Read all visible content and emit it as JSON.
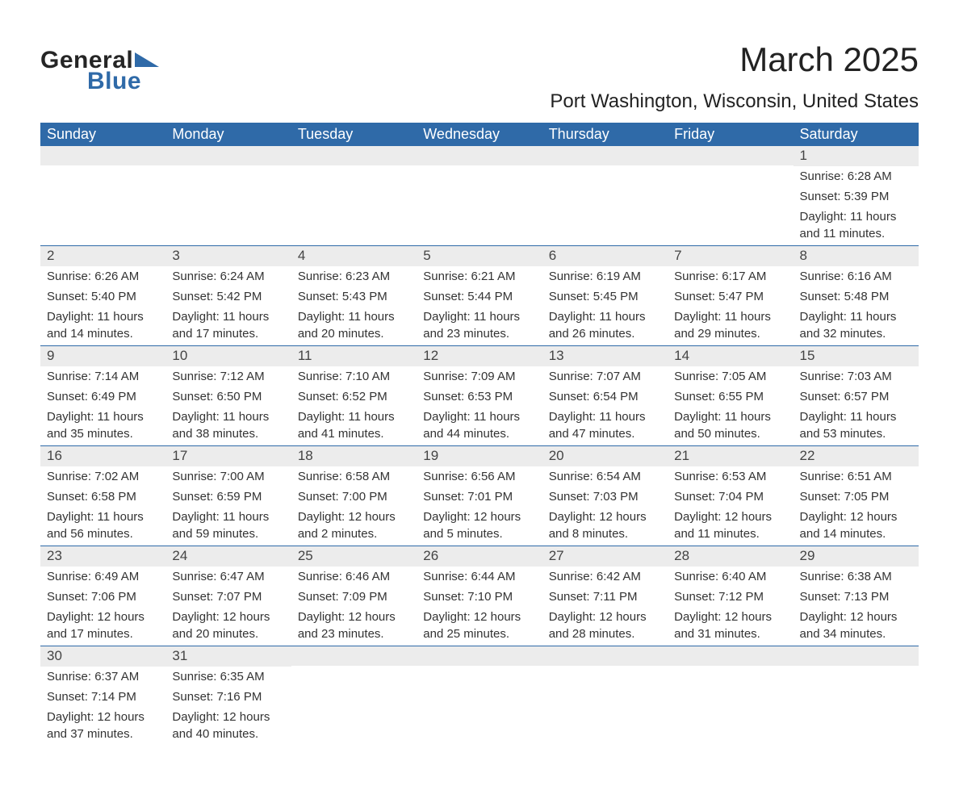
{
  "logo": {
    "word1": "General",
    "word2": "Blue"
  },
  "title": "March 2025",
  "location": "Port Washington, Wisconsin, United States",
  "colors": {
    "header_bg": "#2f6aa8",
    "header_fg": "#ffffff",
    "daynum_bg": "#ececec",
    "text": "#333333",
    "page_bg": "#ffffff"
  },
  "typography": {
    "title_fontsize": 42,
    "location_fontsize": 24,
    "dayhead_fontsize": 18,
    "daynum_fontsize": 17,
    "body_fontsize": 15
  },
  "day_headers": [
    "Sunday",
    "Monday",
    "Tuesday",
    "Wednesday",
    "Thursday",
    "Friday",
    "Saturday"
  ],
  "weeks": [
    [
      {
        "n": "",
        "sr": "",
        "ss": "",
        "dl": ""
      },
      {
        "n": "",
        "sr": "",
        "ss": "",
        "dl": ""
      },
      {
        "n": "",
        "sr": "",
        "ss": "",
        "dl": ""
      },
      {
        "n": "",
        "sr": "",
        "ss": "",
        "dl": ""
      },
      {
        "n": "",
        "sr": "",
        "ss": "",
        "dl": ""
      },
      {
        "n": "",
        "sr": "",
        "ss": "",
        "dl": ""
      },
      {
        "n": "1",
        "sr": "Sunrise: 6:28 AM",
        "ss": "Sunset: 5:39 PM",
        "dl": "Daylight: 11 hours and 11 minutes."
      }
    ],
    [
      {
        "n": "2",
        "sr": "Sunrise: 6:26 AM",
        "ss": "Sunset: 5:40 PM",
        "dl": "Daylight: 11 hours and 14 minutes."
      },
      {
        "n": "3",
        "sr": "Sunrise: 6:24 AM",
        "ss": "Sunset: 5:42 PM",
        "dl": "Daylight: 11 hours and 17 minutes."
      },
      {
        "n": "4",
        "sr": "Sunrise: 6:23 AM",
        "ss": "Sunset: 5:43 PM",
        "dl": "Daylight: 11 hours and 20 minutes."
      },
      {
        "n": "5",
        "sr": "Sunrise: 6:21 AM",
        "ss": "Sunset: 5:44 PM",
        "dl": "Daylight: 11 hours and 23 minutes."
      },
      {
        "n": "6",
        "sr": "Sunrise: 6:19 AM",
        "ss": "Sunset: 5:45 PM",
        "dl": "Daylight: 11 hours and 26 minutes."
      },
      {
        "n": "7",
        "sr": "Sunrise: 6:17 AM",
        "ss": "Sunset: 5:47 PM",
        "dl": "Daylight: 11 hours and 29 minutes."
      },
      {
        "n": "8",
        "sr": "Sunrise: 6:16 AM",
        "ss": "Sunset: 5:48 PM",
        "dl": "Daylight: 11 hours and 32 minutes."
      }
    ],
    [
      {
        "n": "9",
        "sr": "Sunrise: 7:14 AM",
        "ss": "Sunset: 6:49 PM",
        "dl": "Daylight: 11 hours and 35 minutes."
      },
      {
        "n": "10",
        "sr": "Sunrise: 7:12 AM",
        "ss": "Sunset: 6:50 PM",
        "dl": "Daylight: 11 hours and 38 minutes."
      },
      {
        "n": "11",
        "sr": "Sunrise: 7:10 AM",
        "ss": "Sunset: 6:52 PM",
        "dl": "Daylight: 11 hours and 41 minutes."
      },
      {
        "n": "12",
        "sr": "Sunrise: 7:09 AM",
        "ss": "Sunset: 6:53 PM",
        "dl": "Daylight: 11 hours and 44 minutes."
      },
      {
        "n": "13",
        "sr": "Sunrise: 7:07 AM",
        "ss": "Sunset: 6:54 PM",
        "dl": "Daylight: 11 hours and 47 minutes."
      },
      {
        "n": "14",
        "sr": "Sunrise: 7:05 AM",
        "ss": "Sunset: 6:55 PM",
        "dl": "Daylight: 11 hours and 50 minutes."
      },
      {
        "n": "15",
        "sr": "Sunrise: 7:03 AM",
        "ss": "Sunset: 6:57 PM",
        "dl": "Daylight: 11 hours and 53 minutes."
      }
    ],
    [
      {
        "n": "16",
        "sr": "Sunrise: 7:02 AM",
        "ss": "Sunset: 6:58 PM",
        "dl": "Daylight: 11 hours and 56 minutes."
      },
      {
        "n": "17",
        "sr": "Sunrise: 7:00 AM",
        "ss": "Sunset: 6:59 PM",
        "dl": "Daylight: 11 hours and 59 minutes."
      },
      {
        "n": "18",
        "sr": "Sunrise: 6:58 AM",
        "ss": "Sunset: 7:00 PM",
        "dl": "Daylight: 12 hours and 2 minutes."
      },
      {
        "n": "19",
        "sr": "Sunrise: 6:56 AM",
        "ss": "Sunset: 7:01 PM",
        "dl": "Daylight: 12 hours and 5 minutes."
      },
      {
        "n": "20",
        "sr": "Sunrise: 6:54 AM",
        "ss": "Sunset: 7:03 PM",
        "dl": "Daylight: 12 hours and 8 minutes."
      },
      {
        "n": "21",
        "sr": "Sunrise: 6:53 AM",
        "ss": "Sunset: 7:04 PM",
        "dl": "Daylight: 12 hours and 11 minutes."
      },
      {
        "n": "22",
        "sr": "Sunrise: 6:51 AM",
        "ss": "Sunset: 7:05 PM",
        "dl": "Daylight: 12 hours and 14 minutes."
      }
    ],
    [
      {
        "n": "23",
        "sr": "Sunrise: 6:49 AM",
        "ss": "Sunset: 7:06 PM",
        "dl": "Daylight: 12 hours and 17 minutes."
      },
      {
        "n": "24",
        "sr": "Sunrise: 6:47 AM",
        "ss": "Sunset: 7:07 PM",
        "dl": "Daylight: 12 hours and 20 minutes."
      },
      {
        "n": "25",
        "sr": "Sunrise: 6:46 AM",
        "ss": "Sunset: 7:09 PM",
        "dl": "Daylight: 12 hours and 23 minutes."
      },
      {
        "n": "26",
        "sr": "Sunrise: 6:44 AM",
        "ss": "Sunset: 7:10 PM",
        "dl": "Daylight: 12 hours and 25 minutes."
      },
      {
        "n": "27",
        "sr": "Sunrise: 6:42 AM",
        "ss": "Sunset: 7:11 PM",
        "dl": "Daylight: 12 hours and 28 minutes."
      },
      {
        "n": "28",
        "sr": "Sunrise: 6:40 AM",
        "ss": "Sunset: 7:12 PM",
        "dl": "Daylight: 12 hours and 31 minutes."
      },
      {
        "n": "29",
        "sr": "Sunrise: 6:38 AM",
        "ss": "Sunset: 7:13 PM",
        "dl": "Daylight: 12 hours and 34 minutes."
      }
    ],
    [
      {
        "n": "30",
        "sr": "Sunrise: 6:37 AM",
        "ss": "Sunset: 7:14 PM",
        "dl": "Daylight: 12 hours and 37 minutes."
      },
      {
        "n": "31",
        "sr": "Sunrise: 6:35 AM",
        "ss": "Sunset: 7:16 PM",
        "dl": "Daylight: 12 hours and 40 minutes."
      },
      {
        "n": "",
        "sr": "",
        "ss": "",
        "dl": ""
      },
      {
        "n": "",
        "sr": "",
        "ss": "",
        "dl": ""
      },
      {
        "n": "",
        "sr": "",
        "ss": "",
        "dl": ""
      },
      {
        "n": "",
        "sr": "",
        "ss": "",
        "dl": ""
      },
      {
        "n": "",
        "sr": "",
        "ss": "",
        "dl": ""
      }
    ]
  ]
}
